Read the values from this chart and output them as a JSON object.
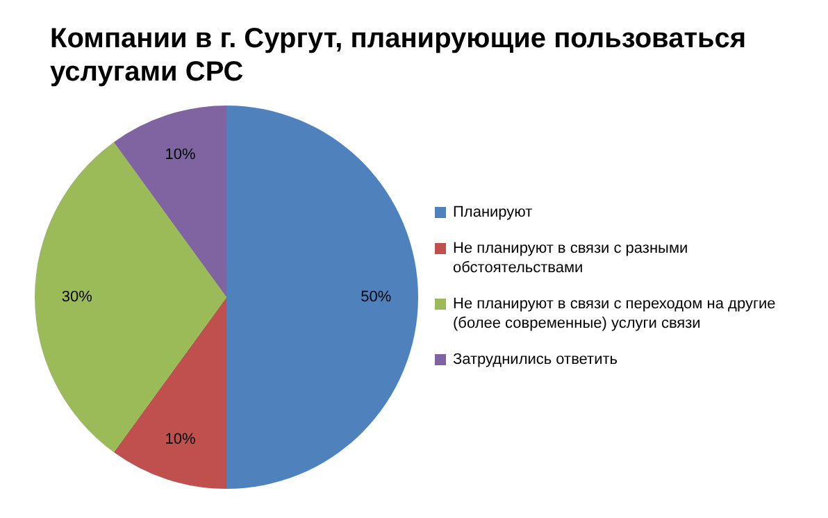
{
  "chart_data": {
    "type": "pie",
    "title": "Компании в г. Сургут, планирующие пользоваться услугами СРС",
    "categories": [
      "Планируют",
      "Не планируют в связи с разными обстоятельствами",
      "Не планируют в связи с переходом на другие (более современные) услуги связи",
      "Затруднились ответить"
    ],
    "values": [
      50,
      10,
      30,
      10
    ],
    "value_labels": [
      "50%",
      "10%",
      "30%",
      "10%"
    ],
    "colors": [
      "#4f81bd",
      "#c0504d",
      "#9bbb59",
      "#8064a2"
    ],
    "legend": "right"
  }
}
